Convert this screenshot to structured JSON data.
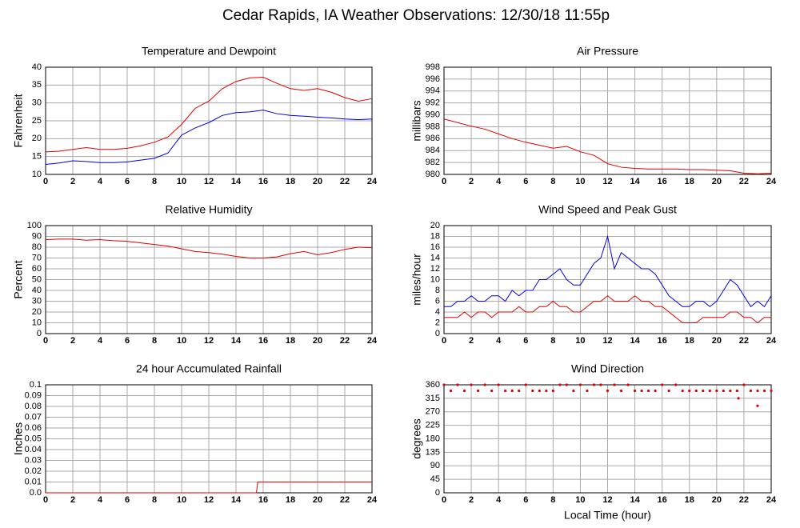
{
  "title": "Cedar Rapids, IA Weather Observations: 12/30/18 11:55p",
  "chart_data": [
    {
      "type": "line",
      "title": "Temperature and Dewpoint",
      "ylabel": "Fahrenheit",
      "x": [
        0,
        1,
        2,
        3,
        4,
        5,
        6,
        7,
        8,
        9,
        10,
        11,
        12,
        13,
        14,
        15,
        16,
        17,
        18,
        19,
        20,
        21,
        22,
        23,
        24
      ],
      "series": [
        {
          "color": "#e00000",
          "values": [
            16.3,
            16.5,
            17,
            17.5,
            17,
            17,
            17.3,
            18,
            19,
            20.5,
            24,
            28.5,
            30.5,
            34,
            36,
            37,
            37.2,
            35.5,
            34,
            33.5,
            34,
            33,
            31.5,
            30.5,
            31.2
          ]
        },
        {
          "color": "#0000e0",
          "values": [
            12.8,
            13.2,
            13.8,
            13.6,
            13.3,
            13.3,
            13.5,
            14,
            14.5,
            16,
            21,
            23,
            24.5,
            26.5,
            27.3,
            27.5,
            28,
            27,
            26.5,
            26.3,
            26,
            25.8,
            25.5,
            25.3,
            25.5
          ]
        }
      ],
      "xlim": [
        0,
        24
      ],
      "xticks": [
        0,
        2,
        4,
        6,
        8,
        10,
        12,
        14,
        16,
        18,
        20,
        22,
        24
      ],
      "ylim": [
        10,
        40
      ],
      "yticks": [
        10,
        15,
        20,
        25,
        30,
        35,
        40
      ],
      "grid": true
    },
    {
      "type": "line",
      "title": "Air Pressure",
      "ylabel": "millibars",
      "x": [
        0,
        1,
        2,
        3,
        4,
        5,
        6,
        7,
        8,
        9,
        10,
        11,
        12,
        13,
        14,
        15,
        16,
        17,
        18,
        19,
        20,
        21,
        22,
        23,
        24
      ],
      "series": [
        {
          "color": "#e00000",
          "values": [
            989.3,
            988.7,
            988.1,
            987.6,
            986.8,
            986,
            985.4,
            984.9,
            984.4,
            984.7,
            983.8,
            983.2,
            981.8,
            981.2,
            981,
            980.9,
            980.9,
            980.9,
            980.8,
            980.8,
            980.7,
            980.6,
            980.2,
            980.1,
            980.2
          ]
        }
      ],
      "xlim": [
        0,
        24
      ],
      "xticks": [
        0,
        2,
        4,
        6,
        8,
        10,
        12,
        14,
        16,
        18,
        20,
        22,
        24
      ],
      "ylim": [
        980,
        998
      ],
      "yticks": [
        980,
        982,
        984,
        986,
        988,
        990,
        992,
        994,
        996,
        998
      ],
      "grid": true
    },
    {
      "type": "line",
      "title": "Relative Humidity",
      "ylabel": "Percent",
      "x": [
        0,
        1,
        2,
        3,
        4,
        5,
        6,
        7,
        8,
        9,
        10,
        11,
        12,
        13,
        14,
        15,
        16,
        17,
        18,
        19,
        20,
        21,
        22,
        23,
        24
      ],
      "series": [
        {
          "color": "#e00000",
          "values": [
            87,
            87.5,
            87.5,
            86.5,
            87,
            86,
            85.5,
            84,
            82.5,
            81,
            78.5,
            76,
            75,
            73.5,
            71.5,
            70,
            70,
            71,
            74,
            76,
            73,
            75,
            78,
            80,
            79.5
          ]
        }
      ],
      "xlim": [
        0,
        24
      ],
      "xticks": [
        0,
        2,
        4,
        6,
        8,
        10,
        12,
        14,
        16,
        18,
        20,
        22,
        24
      ],
      "ylim": [
        0,
        100
      ],
      "yticks": [
        0,
        10,
        20,
        30,
        40,
        50,
        60,
        70,
        80,
        90,
        100
      ],
      "grid": true
    },
    {
      "type": "line",
      "title": "Wind Speed and Peak Gust",
      "ylabel": "miles/hour",
      "x": [
        0,
        0.5,
        1,
        1.5,
        2,
        2.5,
        3,
        3.5,
        4,
        4.5,
        5,
        5.5,
        6,
        6.5,
        7,
        7.5,
        8,
        8.5,
        9,
        9.5,
        10,
        10.5,
        11,
        11.5,
        12,
        12.5,
        13,
        13.5,
        14,
        14.5,
        15,
        15.5,
        16,
        16.5,
        17,
        17.5,
        18,
        18.5,
        19,
        19.5,
        20,
        20.5,
        21,
        21.5,
        22,
        22.5,
        23,
        23.5,
        24
      ],
      "series": [
        {
          "color": "#0000e0",
          "values": [
            5,
            5,
            6,
            6,
            7,
            6,
            6,
            7,
            7,
            6,
            8,
            7,
            8,
            8,
            10,
            10,
            11,
            12,
            10,
            9,
            9,
            11,
            13,
            14,
            18,
            12,
            15,
            14,
            13,
            12,
            12,
            11,
            9,
            7,
            6,
            5,
            5,
            6,
            6,
            5,
            6,
            8,
            10,
            9,
            7,
            5,
            6,
            5,
            7
          ]
        },
        {
          "color": "#e00000",
          "values": [
            3,
            3,
            3,
            4,
            3,
            4,
            4,
            3,
            4,
            4,
            4,
            5,
            4,
            4,
            5,
            5,
            6,
            5,
            5,
            4,
            4,
            5,
            6,
            6,
            7,
            6,
            6,
            6,
            7,
            6,
            6,
            5,
            5,
            4,
            3,
            2,
            2,
            2,
            3,
            3,
            3,
            3,
            4,
            4,
            3,
            3,
            2,
            3,
            3
          ]
        }
      ],
      "xlim": [
        0,
        24
      ],
      "xticks": [
        0,
        2,
        4,
        6,
        8,
        10,
        12,
        14,
        16,
        18,
        20,
        22,
        24
      ],
      "ylim": [
        0,
        20
      ],
      "yticks": [
        0,
        2,
        4,
        6,
        8,
        10,
        12,
        14,
        16,
        18,
        20
      ],
      "grid": true
    },
    {
      "type": "line",
      "title": "24 hour Accumulated Rainfall",
      "ylabel": "Inches",
      "x": [
        0,
        15.5,
        15.6,
        24
      ],
      "series": [
        {
          "color": "#e00000",
          "values": [
            0,
            0,
            0.01,
            0.01
          ]
        }
      ],
      "xlim": [
        0,
        24
      ],
      "xticks": [
        0,
        2,
        4,
        6,
        8,
        10,
        12,
        14,
        16,
        18,
        20,
        22,
        24
      ],
      "ylim": [
        0,
        0.1
      ],
      "yticks": [
        {
          "value": 0,
          "label": "0.0"
        },
        0.01,
        0.02,
        0.03,
        0.04,
        0.05,
        0.06,
        0.07,
        0.08,
        0.09,
        0.1
      ],
      "grid": true
    },
    {
      "type": "scatter",
      "title": "Wind Direction",
      "ylabel": "degrees",
      "xlabel": "Local Time (hour)",
      "x": [
        0,
        0.5,
        1,
        1.5,
        2,
        2.5,
        3,
        3.5,
        4,
        4.5,
        5,
        5.5,
        6,
        6.5,
        7,
        7.5,
        8,
        8.5,
        9,
        9.5,
        10,
        10.5,
        11,
        11.5,
        12,
        12.5,
        13,
        13.5,
        14,
        14.5,
        15,
        15.5,
        16,
        16.5,
        17,
        17.5,
        18,
        18.5,
        19,
        19.5,
        20,
        20.5,
        21,
        21.5,
        22,
        22.5,
        23,
        23.5,
        24,
        21.6,
        23
      ],
      "values": [
        360,
        340,
        360,
        340,
        360,
        340,
        360,
        340,
        360,
        340,
        340,
        340,
        360,
        340,
        340,
        340,
        340,
        360,
        360,
        340,
        360,
        340,
        360,
        360,
        340,
        360,
        340,
        360,
        340,
        340,
        340,
        340,
        360,
        340,
        360,
        340,
        340,
        340,
        340,
        340,
        340,
        340,
        340,
        340,
        360,
        340,
        340,
        340,
        340,
        315,
        290
      ],
      "color": "#e00000",
      "xlim": [
        0,
        24
      ],
      "xticks": [
        0,
        2,
        4,
        6,
        8,
        10,
        12,
        14,
        16,
        18,
        20,
        22,
        24
      ],
      "ylim": [
        0,
        360
      ],
      "yticks": [
        0,
        45,
        90,
        135,
        180,
        225,
        270,
        315,
        360
      ],
      "grid": true
    }
  ]
}
